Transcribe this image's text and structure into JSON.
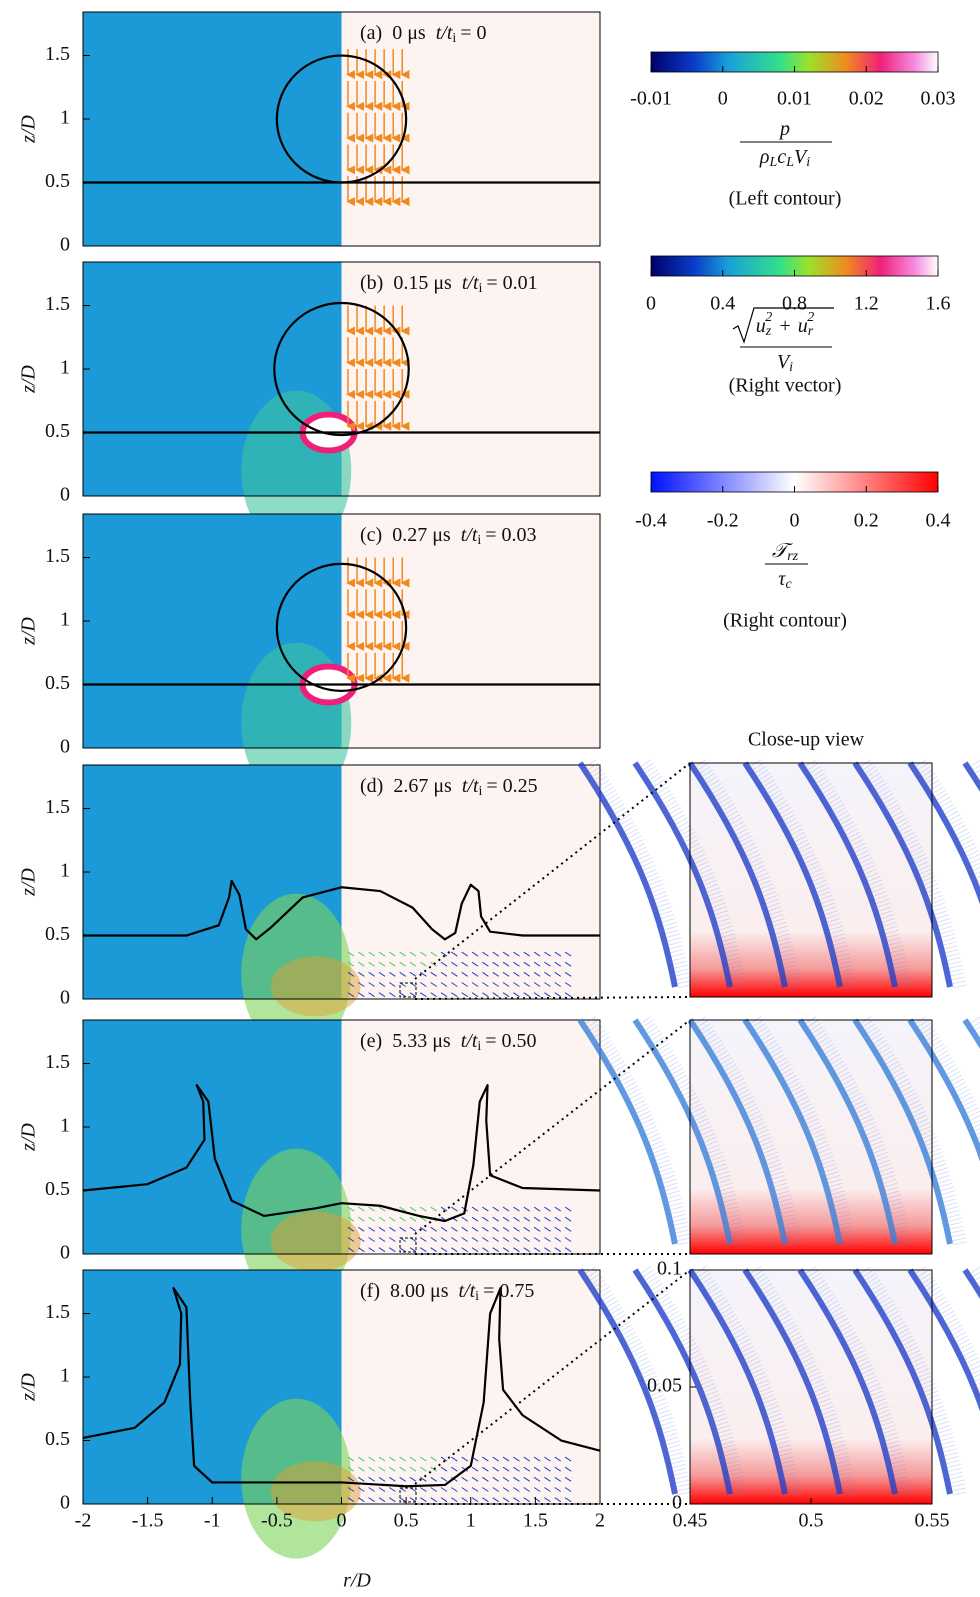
{
  "figure": {
    "ratio_symbol": "t/t",
    "ratio_subscript": "i",
    "panels": [
      {
        "label": "(a)",
        "time": "0 μs",
        "ratio": "= 0"
      },
      {
        "label": "(b)",
        "time": "0.15 μs",
        "ratio": "= 0.01"
      },
      {
        "label": "(c)",
        "time": "0.27 μs",
        "ratio": "= 0.03"
      },
      {
        "label": "(d)",
        "time": "2.67 μs",
        "ratio": "= 0.25"
      },
      {
        "label": "(e)",
        "time": "5.33 μs",
        "ratio": "= 0.50"
      },
      {
        "label": "(f)",
        "time": "8.00 μs",
        "ratio": "= 0.75"
      }
    ],
    "y_axis_label": "z/D",
    "y_ticks": [
      0,
      0.5,
      1,
      1.5
    ],
    "x_axis_label": "r/D",
    "x_ticks": [
      -2,
      -1.5,
      -1,
      -0.5,
      0,
      0.5,
      1,
      1.5,
      2
    ],
    "colorbars": [
      {
        "ticks": [
          -0.01,
          0,
          0.01,
          0.02,
          0.03
        ],
        "numerator": "p",
        "denominator": [
          {
            "base": "ρ",
            "sub": "L"
          },
          {
            "base": "c",
            "sub": "L"
          },
          {
            "base": "V",
            "sub": "i"
          }
        ],
        "caption": "(Left contour)"
      },
      {
        "ticks": [
          0,
          0.4,
          0.8,
          1.2,
          1.6
        ],
        "terms": [
          {
            "base": "u",
            "sub": "z",
            "sup": "2"
          },
          {
            "base": "u",
            "sub": "r",
            "sup": "2"
          }
        ],
        "operator": "+",
        "denominator": [
          {
            "base": "V",
            "sub": "i"
          }
        ],
        "caption": "(Right vector)"
      },
      {
        "ticks": [
          -0.4,
          -0.2,
          0,
          0.2,
          0.4
        ],
        "numerator_base": "𝒯",
        "numerator_sub": "rz",
        "denominator": [
          {
            "base": "τ",
            "sub": "c"
          }
        ],
        "caption": "(Right contour)"
      }
    ],
    "closeup": {
      "title": "Close-up view",
      "y_ticks": [
        0,
        0.05,
        0.1
      ],
      "x_ticks": [
        0.45,
        0.5,
        0.55
      ]
    }
  }
}
